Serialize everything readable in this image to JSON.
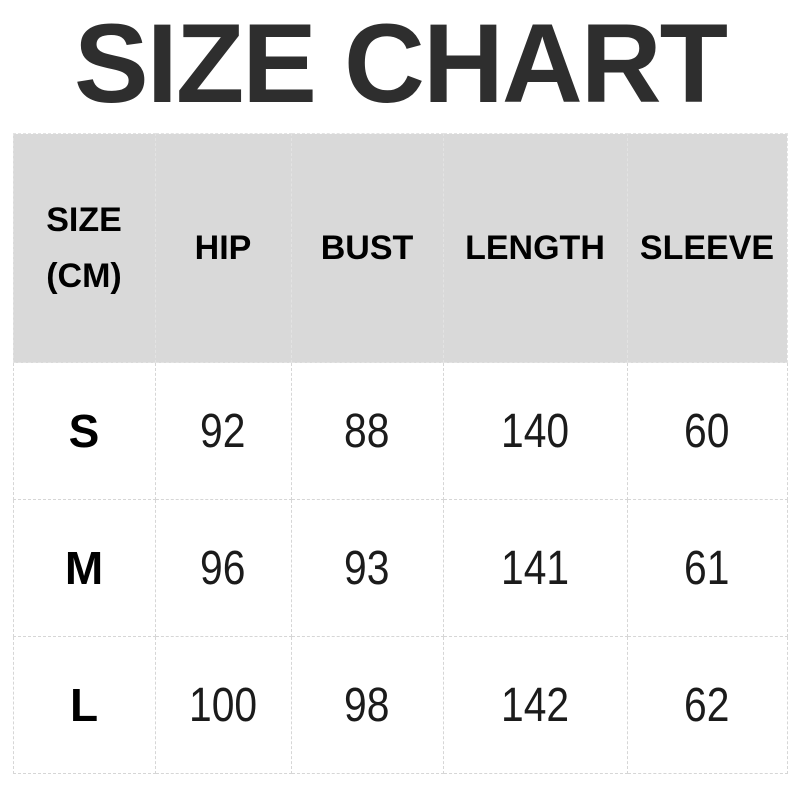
{
  "title": "SIZE CHART",
  "colors": {
    "header_bg": "#d9d9d9",
    "border": "#d6d6d6",
    "title_text": "#2e2e2e",
    "body_text": "#1b1b1b"
  },
  "chart_data": {
    "type": "table",
    "title": "SIZE CHART",
    "columns": [
      "SIZE (CM)",
      "HIP",
      "BUST",
      "LENGTH",
      "SLEEVE"
    ],
    "rows": [
      [
        "S",
        92,
        88,
        140,
        60
      ],
      [
        "M",
        96,
        93,
        141,
        61
      ],
      [
        "L",
        100,
        98,
        142,
        62
      ]
    ],
    "layout_hints": {
      "header_background": "#d9d9d9",
      "grid": "dashed",
      "rows_background": "#ffffff"
    }
  }
}
